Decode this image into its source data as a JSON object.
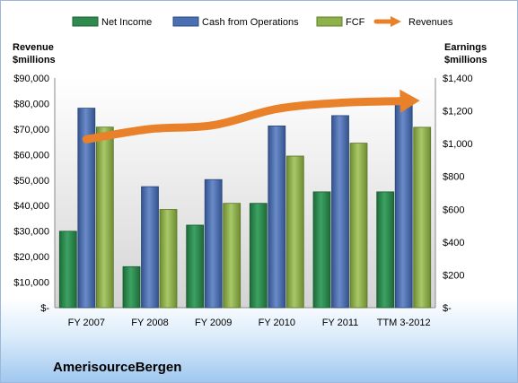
{
  "chart_data": {
    "type": "bar+line",
    "company": "AmerisourceBergen",
    "categories": [
      "FY 2007",
      "FY 2008",
      "FY 2009",
      "FY 2010",
      "FY 2011",
      "TTM 3-2012"
    ],
    "series": [
      {
        "name": "Net Income",
        "axis": "right",
        "color": "#2f8a4e",
        "values": [
          466,
          250,
          503,
          636,
          706,
          706
        ]
      },
      {
        "name": "Cash from Operations",
        "axis": "right",
        "color": "#4b6fb2",
        "values": [
          1216,
          738,
          781,
          1108,
          1171,
          1265
        ]
      },
      {
        "name": "FCF",
        "axis": "right",
        "color": "#8fb14a",
        "values": [
          1101,
          599,
          636,
          924,
          1003,
          1100
        ]
      },
      {
        "name": "Revenues",
        "axis": "left",
        "type": "line",
        "color": "#e9802a",
        "values": [
          66000,
          70000,
          71500,
          77900,
          80300,
          81000
        ]
      }
    ],
    "left_axis": {
      "title_line1": "Revenue",
      "title_line2": "$millions",
      "min": 0,
      "max": 90000,
      "ticks": [
        "$-",
        "$10,000",
        "$20,000",
        "$30,000",
        "$40,000",
        "$50,000",
        "$60,000",
        "$70,000",
        "$80,000",
        "$90,000"
      ]
    },
    "right_axis": {
      "title_line1": "Earnings",
      "title_line2": "$millions",
      "min": 0,
      "max": 1400,
      "ticks": [
        "$-",
        "$200",
        "$400",
        "$600",
        "$800",
        "$1,000",
        "$1,200",
        "$1,400"
      ]
    },
    "legend_position": "top",
    "grid": false
  }
}
